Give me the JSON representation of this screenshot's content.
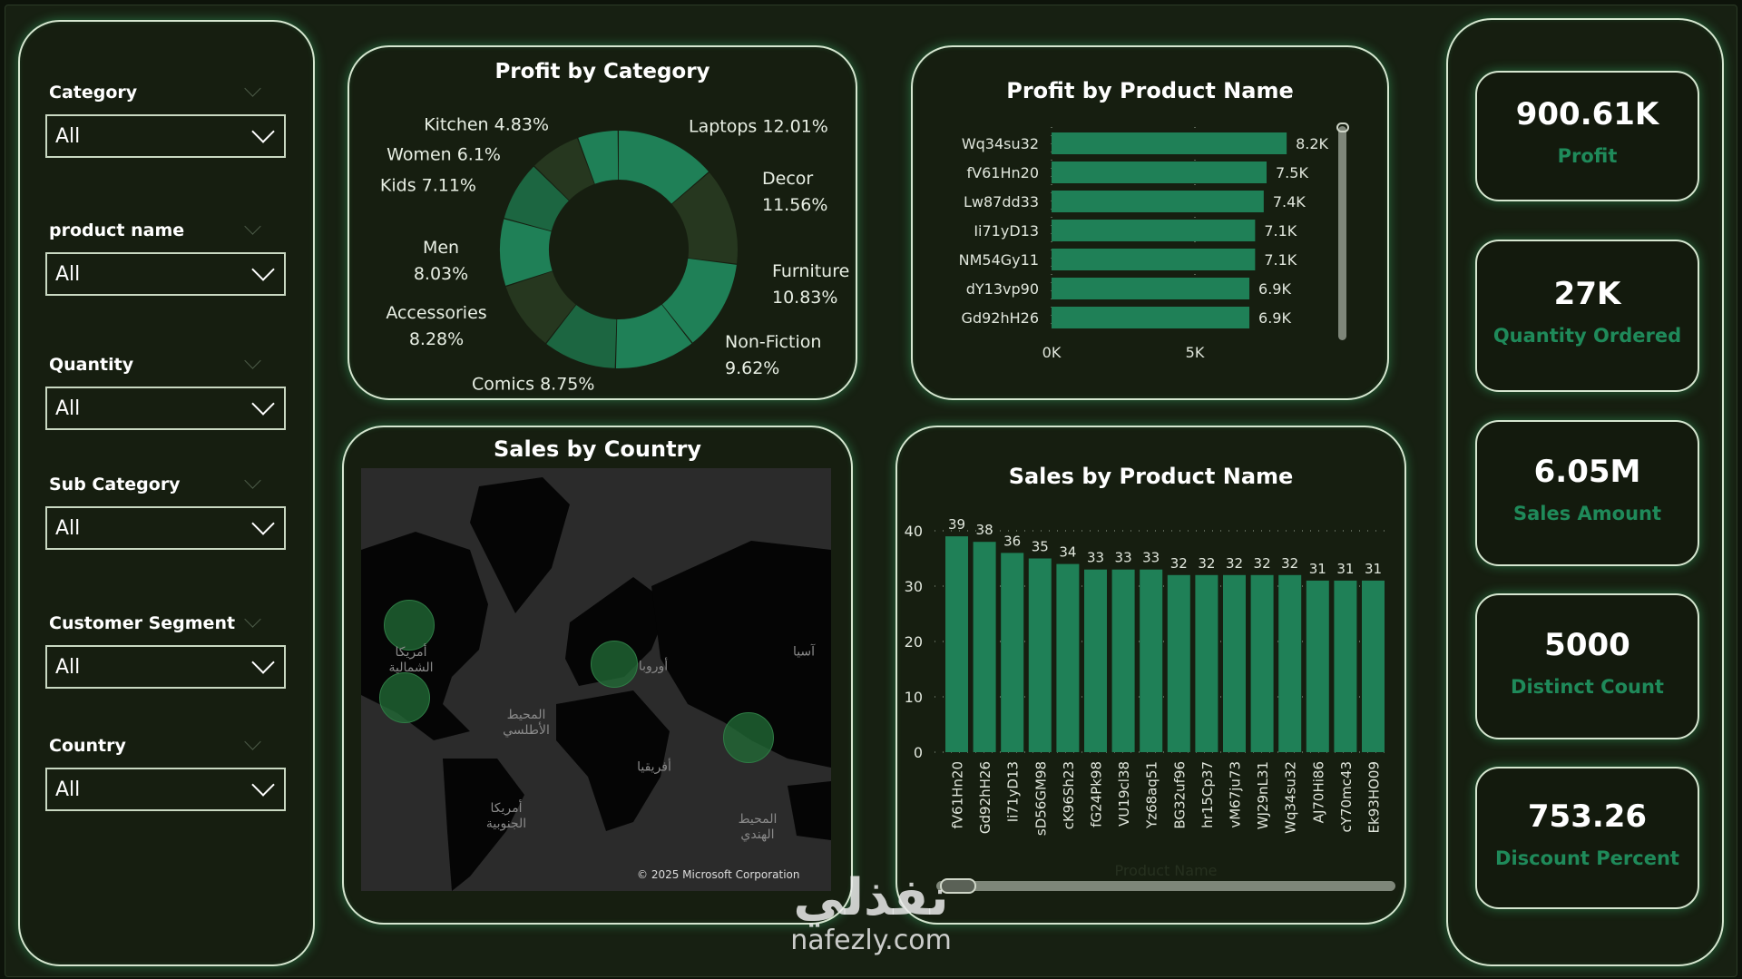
{
  "filters": [
    {
      "label": "Category",
      "value": "All"
    },
    {
      "label": "product name",
      "value": "All"
    },
    {
      "label": "Quantity",
      "value": "All"
    },
    {
      "label": "Sub Category",
      "value": "All"
    },
    {
      "label": "Customer Segment",
      "value": "All"
    },
    {
      "label": "Country",
      "value": "All"
    }
  ],
  "kpis": [
    {
      "value": "900.61K",
      "label": "Profit"
    },
    {
      "value": "27K",
      "label": "Quantity Ordered"
    },
    {
      "value": "6.05M",
      "label": "Sales Amount"
    },
    {
      "value": "5000",
      "label": "Distinct Count"
    },
    {
      "value": "753.26",
      "label": "Discount Percent"
    }
  ],
  "colors": {
    "accent": "#1f8057",
    "dark_slice": "#26371f",
    "mid_slice": "#1c6641",
    "background": "#161e10"
  },
  "map": {
    "title": "Sales by Country",
    "labels": {
      "north_america": "أمريكا الشمالية",
      "atlantic": "المحيط الأطلسي",
      "europe": "أوروبا",
      "asia": "آسيا",
      "africa": "أفريقيا",
      "south_america": "أمريكا الجنوبية",
      "indian_ocean": "المحيط الهندي"
    },
    "copyright": "© 2025 Microsoft Corporation"
  },
  "watermark": {
    "arabic": "نفذلي",
    "latin": "nafezly.com"
  },
  "chart_data": [
    {
      "type": "pie",
      "title": "Profit by Category",
      "categories": [
        "Laptops",
        "Decor",
        "Furniture",
        "Non-Fiction",
        "Comics",
        "Accessories",
        "Men",
        "Kids",
        "Women",
        "Kitchen"
      ],
      "values": [
        12.01,
        11.56,
        10.83,
        9.62,
        8.75,
        8.28,
        8.03,
        7.11,
        6.1,
        4.83
      ],
      "labels": [
        "Laptops 12.01%",
        "Decor",
        "11.56%",
        "Furniture",
        "10.83%",
        "Non-Fiction",
        "9.62%",
        "Comics 8.75%",
        "Accessories",
        "8.28%",
        "Men",
        "8.03%",
        "Kids 7.11%",
        "Women 6.1%",
        "Kitchen 4.83%"
      ]
    },
    {
      "type": "bar",
      "orientation": "horizontal",
      "title": "Profit by Product Name",
      "categories": [
        "Wq34su32",
        "fV61Hn20",
        "Lw87dd33",
        "Ii71yD13",
        "NM54Gy11",
        "dY13vp90",
        "Gd92hH26"
      ],
      "values": [
        8200,
        7500,
        7400,
        7100,
        7100,
        6900,
        6900
      ],
      "data_labels": [
        "8.2K",
        "7.5K",
        "7.4K",
        "7.1K",
        "7.1K",
        "6.9K",
        "6.9K"
      ],
      "xticks": [
        "0K",
        "5K"
      ],
      "xlim": [
        0,
        10000
      ]
    },
    {
      "type": "bar",
      "title": "Sales by Product Name",
      "categories": [
        "fV61Hn20",
        "Gd92hH26",
        "Ii71yD13",
        "sD56GM98",
        "cK96Sh23",
        "fG24Pk98",
        "VU19cl38",
        "Yz68aq51",
        "BG32uf96",
        "hr15Cp37",
        "vM67ju73",
        "WJ29nL31",
        "Wq34su32",
        "AJ70Hi86",
        "cY70mc43",
        "Ek93HO09"
      ],
      "values": [
        39,
        38,
        36,
        35,
        34,
        33,
        33,
        33,
        32,
        32,
        32,
        32,
        32,
        31,
        31,
        31
      ],
      "yticks": [
        "0",
        "10",
        "20",
        "30",
        "40"
      ],
      "ylim": [
        0,
        40
      ],
      "xlabel": "Product Name",
      "grid": true
    }
  ]
}
